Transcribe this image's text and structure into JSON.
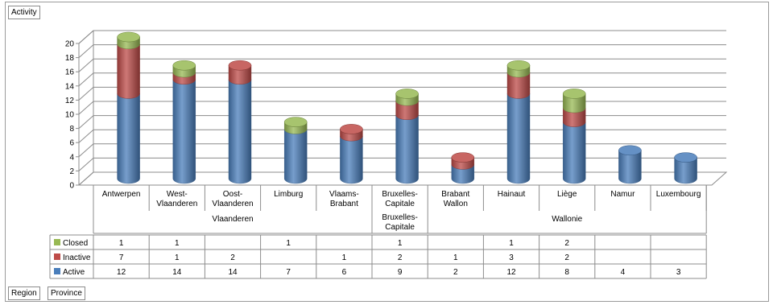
{
  "buttons": {
    "activity": "Activity",
    "region": "Region",
    "province": "Province"
  },
  "chart_data": {
    "type": "bar",
    "stacked": true,
    "three_d": true,
    "categories": [
      "Antwerpen",
      "West-Vlaanderen",
      "Oost-Vlaanderen",
      "Limburg",
      "Vlaams-Brabant",
      "Bruxelles-Capitale",
      "Brabant Wallon",
      "Hainaut",
      "Liège",
      "Namur",
      "Luxembourg"
    ],
    "category_lines": [
      [
        "Antwerpen"
      ],
      [
        "West-",
        "Vlaanderen"
      ],
      [
        "Oost-",
        "Vlaanderen"
      ],
      [
        "Limburg"
      ],
      [
        "Vlaams-",
        "Brabant"
      ],
      [
        "Bruxelles-",
        "Capitale"
      ],
      [
        "Brabant",
        "Wallon"
      ],
      [
        "Hainaut"
      ],
      [
        "Liège"
      ],
      [
        "Namur"
      ],
      [
        "Luxembourg"
      ]
    ],
    "groups": [
      {
        "lines": [
          "Vlaanderen"
        ],
        "span": [
          0,
          4
        ]
      },
      {
        "lines": [
          "Bruxelles-",
          "Capitale"
        ],
        "span": [
          5,
          5
        ]
      },
      {
        "lines": [
          "Wallonie"
        ],
        "span": [
          6,
          10
        ]
      }
    ],
    "series": [
      {
        "name": "Active",
        "color": "#4a7ebb",
        "values": [
          12,
          14,
          14,
          7,
          6,
          9,
          2,
          12,
          8,
          4,
          3
        ]
      },
      {
        "name": "Inactive",
        "color": "#be4b48",
        "values": [
          7,
          1,
          2,
          null,
          1,
          2,
          1,
          3,
          2,
          null,
          null
        ]
      },
      {
        "name": "Closed",
        "color": "#98b954",
        "values": [
          1,
          1,
          null,
          1,
          null,
          1,
          null,
          1,
          2,
          null,
          null
        ]
      }
    ],
    "table_row_order": [
      "Closed",
      "Inactive",
      "Active"
    ],
    "ylim": [
      0,
      20
    ],
    "yticks": [
      0,
      2,
      4,
      6,
      8,
      10,
      12,
      14,
      16,
      18,
      20
    ],
    "grid": true,
    "legend": "data-table"
  }
}
